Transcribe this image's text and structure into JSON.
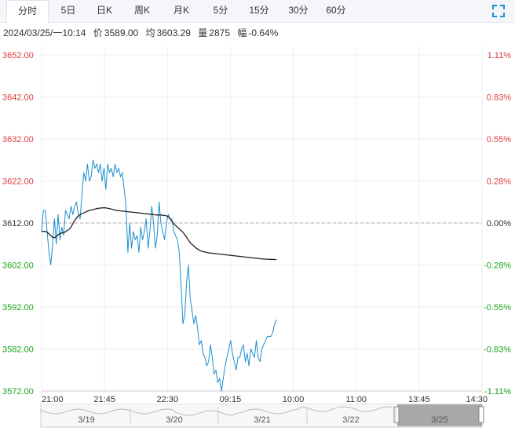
{
  "tabs": [
    {
      "label": "分时",
      "active": true
    },
    {
      "label": "5日",
      "active": false
    },
    {
      "label": "日K",
      "active": false
    },
    {
      "label": "周K",
      "active": false
    },
    {
      "label": "月K",
      "active": false
    },
    {
      "label": "5分",
      "active": false
    },
    {
      "label": "15分",
      "active": false
    },
    {
      "label": "30分",
      "active": false
    },
    {
      "label": "60分",
      "active": false
    }
  ],
  "info": {
    "datetime": "2024/03/25/一10:14",
    "price_label": "价",
    "price": "3589.00",
    "avg_label": "均",
    "avg": "3603.29",
    "vol_label": "量",
    "vol": "2875",
    "chg_label": "幅",
    "chg": "-0.64%"
  },
  "colors": {
    "price_line": "#1c8fd0",
    "avg_line": "#222222",
    "up": "#e03a3a",
    "down": "#19a319",
    "grid": "#eeeeee",
    "ref": "#aaaaaa"
  },
  "chart_data": {
    "type": "line",
    "y_left_ticks": [
      "3652.00",
      "3642.00",
      "3632.00",
      "3622.00",
      "3612.00",
      "3602.00",
      "3592.00",
      "3582.00",
      "3572.00"
    ],
    "y_right_ticks": [
      "1.11%",
      "0.83%",
      "0.55%",
      "0.28%",
      "0.00%",
      "-0.28%",
      "-0.55%",
      "-0.83%",
      "-1.11%"
    ],
    "ylim": [
      3572,
      3652
    ],
    "prev_close": 3612,
    "x_ticks": [
      "21:00",
      "21:45",
      "22:30",
      "09:15",
      "10:00",
      "11:00",
      "13:45",
      "14:30"
    ],
    "total_slots": 240,
    "series": [
      {
        "key": "price",
        "values": [
          3610,
          3615,
          3615,
          3610,
          3605,
          3602,
          3607,
          3613,
          3607,
          3614,
          3608,
          3611,
          3609,
          3615,
          3614,
          3613,
          3616,
          3614,
          3616,
          3617,
          3614,
          3613,
          3619,
          3624,
          3622,
          3626,
          3622,
          3623,
          3627,
          3625,
          3626,
          3624,
          3626,
          3622,
          3625,
          3620,
          3626,
          3624,
          3625,
          3623,
          3626,
          3624,
          3625,
          3623,
          3624,
          3620,
          3616,
          3605,
          3612,
          3606,
          3610,
          3608,
          3609,
          3605,
          3611,
          3608,
          3610,
          3613,
          3606,
          3610,
          3616,
          3612,
          3606,
          3609,
          3617,
          3612,
          3610,
          3608,
          3612,
          3614,
          3613,
          3613,
          3610,
          3609,
          3608,
          3605,
          3597,
          3588,
          3590,
          3598,
          3602,
          3594,
          3591,
          3588,
          3590,
          3587,
          3583,
          3584,
          3581,
          3580,
          3578,
          3579,
          3583,
          3580,
          3576,
          3577,
          3574,
          3575,
          3572,
          3575,
          3578,
          3580,
          3582,
          3584,
          3581,
          3579,
          3577,
          3580,
          3580,
          3582,
          3583,
          3579,
          3581,
          3578,
          3582,
          3581,
          3580,
          3584,
          3580,
          3579,
          3582,
          3583,
          3584,
          3585,
          3585,
          3585,
          3586,
          3588,
          3589
        ]
      },
      {
        "key": "avg",
        "values": [
          3610,
          3610,
          3610,
          3609.8,
          3609.4,
          3609,
          3608.6,
          3608.5,
          3608.8,
          3609.2,
          3609.5,
          3609.6,
          3609.7,
          3609.9,
          3610.2,
          3610.5,
          3611,
          3611.8,
          3612.6,
          3613.2,
          3613.7,
          3614,
          3614.2,
          3614.4,
          3614.6,
          3614.8,
          3615,
          3615.1,
          3615.2,
          3615.3,
          3615.4,
          3615.5,
          3615.55,
          3615.6,
          3615.6,
          3615.6,
          3615.5,
          3615.4,
          3615.3,
          3615.2,
          3615.1,
          3615,
          3614.95,
          3614.9,
          3614.85,
          3614.8,
          3614.75,
          3614.7,
          3614.65,
          3614.6,
          3614.55,
          3614.5,
          3614.45,
          3614.4,
          3614.35,
          3614.3,
          3614.25,
          3614.2,
          3614.15,
          3614.1,
          3614.05,
          3614,
          3613.95,
          3613.9,
          3613.9,
          3613.9,
          3613.85,
          3613.8,
          3613.7,
          3613.5,
          3613,
          3612.4,
          3611.8,
          3611.4,
          3611,
          3610.6,
          3610.2,
          3609.8,
          3609.2,
          3608.6,
          3607.9,
          3607.3,
          3606.9,
          3606.5,
          3606.1,
          3605.8,
          3605.5,
          3605.3,
          3605.2,
          3605.1,
          3605,
          3604.9,
          3604.85,
          3604.8,
          3604.75,
          3604.7,
          3604.65,
          3604.6,
          3604.55,
          3604.5,
          3604.45,
          3604.4,
          3604.35,
          3604.3,
          3604.25,
          3604.2,
          3604.15,
          3604.1,
          3604.05,
          3604,
          3603.95,
          3603.9,
          3603.85,
          3603.8,
          3603.75,
          3603.7,
          3603.65,
          3603.6,
          3603.55,
          3603.5,
          3603.45,
          3603.42,
          3603.4,
          3603.38,
          3603.36,
          3603.34,
          3603.32,
          3603.3,
          3603.29
        ]
      }
    ]
  },
  "navigator": {
    "dates": [
      "3/19",
      "3/20",
      "3/21",
      "3/22",
      "3/25"
    ]
  }
}
